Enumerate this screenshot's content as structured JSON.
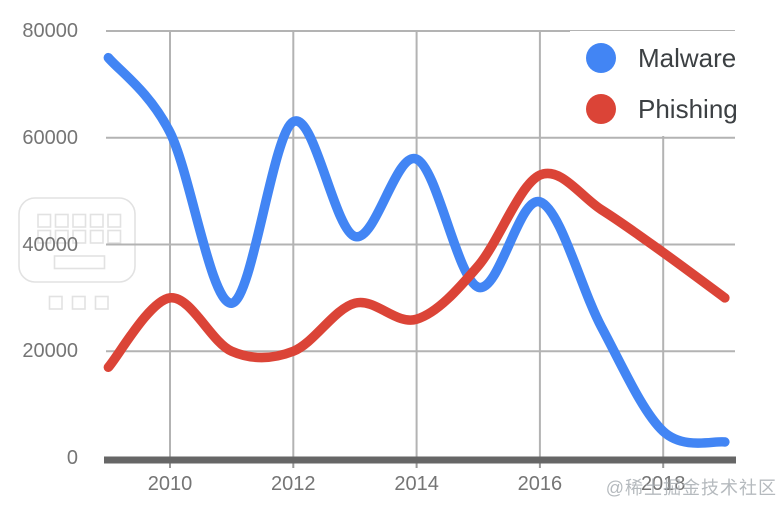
{
  "chart_data": {
    "type": "line",
    "title": "",
    "xlabel": "",
    "ylabel": "",
    "grid": true,
    "legend_position": "top-right",
    "xlim": [
      2009,
      2019.2
    ],
    "ylim": [
      0,
      80000
    ],
    "x": [
      2009,
      2010,
      2011,
      2012,
      2013,
      2014,
      2015,
      2016,
      2017,
      2018,
      2019
    ],
    "series": [
      {
        "name": "Malware",
        "color": "#4285F4",
        "values": [
          75000,
          61000,
          29000,
          63000,
          41500,
          56000,
          32000,
          48000,
          24500,
          5000,
          3000
        ]
      },
      {
        "name": "Phishing",
        "color": "#DB4437",
        "values": [
          17000,
          30000,
          20000,
          20000,
          29000,
          26000,
          36000,
          53000,
          46500,
          38500,
          30000
        ]
      }
    ],
    "x_ticks": [
      {
        "year": 2010,
        "label": "2010"
      },
      {
        "year": 2012,
        "label": "2012"
      },
      {
        "year": 2014,
        "label": "2014"
      },
      {
        "year": 2016,
        "label": "2016"
      },
      {
        "year": 2018,
        "label": "2018"
      }
    ],
    "y_ticks": [
      {
        "value": 0,
        "label": "0"
      },
      {
        "value": 20000,
        "label": "20000"
      },
      {
        "value": 40000,
        "label": "40000"
      },
      {
        "value": 60000,
        "label": "60000"
      },
      {
        "value": 80000,
        "label": "80000"
      }
    ]
  },
  "watermark": {
    "text": "@稀土掘金技术社区"
  },
  "icons": {
    "left_overlay": "keyboard-icon"
  },
  "colors": {
    "background": "#FFFFFF",
    "grid": "#B3B3B3",
    "axis": "#666666",
    "axis_tick": "#999999",
    "tick_label": "#757575",
    "legend_text": "#3C4043",
    "watermark": "#A9AEB3",
    "icon_stroke": "#E2E2E2"
  }
}
